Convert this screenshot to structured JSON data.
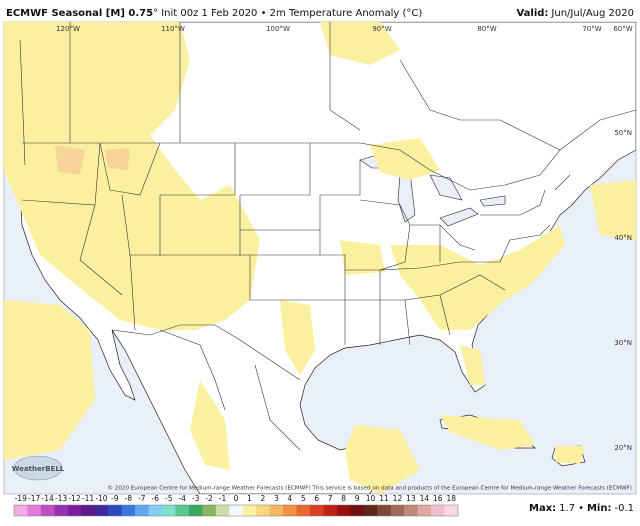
{
  "header": {
    "title": "ECMWF Seasonal [M] 0.75",
    "subtitle": "° Init 00z 1 Feb 2020 • 2m Temperature Anomaly (°C)",
    "valid_label": "Valid:",
    "valid_value": "Jun/Jul/Aug 2020"
  },
  "longitude_labels": [
    "120°W",
    "110°W",
    "100°W",
    "90°W",
    "80°W",
    "70°W",
    "60°W"
  ],
  "latitude_labels": [
    "50°N",
    "40°N",
    "30°N",
    "20°N"
  ],
  "logo": "WeatherBELL",
  "copyright": "© 2020 European Centre for Medium-range Weather Forecasts (ECMWF) This service is based on data and products of the European Centre for Medium-range Weather Forecasts (ECMWF)",
  "colorbar": {
    "labels": [
      -19,
      -17,
      -14,
      -13,
      -12,
      -11,
      -10,
      -9,
      -8,
      -7,
      -6,
      -5,
      -4,
      -3,
      -2,
      -1,
      0,
      1,
      2,
      3,
      4,
      5,
      6,
      7,
      8,
      9,
      10,
      11,
      12,
      13,
      14,
      16,
      18
    ],
    "colors": [
      "#f7a8e6",
      "#e27ad8",
      "#c04fc4",
      "#9a2fb0",
      "#7a1f9a",
      "#5a1a8a",
      "#3d2a9a",
      "#2a4ac0",
      "#3a78e0",
      "#5ea8f0",
      "#86cdf5",
      "#7fe0d0",
      "#5ac890",
      "#3aa860",
      "#8ab860",
      "#c8e0a8",
      "#f4f8fb",
      "#fbf0a0",
      "#f7d880",
      "#f4b860",
      "#f09040",
      "#e86830",
      "#d84020",
      "#c02018",
      "#9a1010",
      "#701010",
      "#602818",
      "#804838",
      "#a06858",
      "#c08878",
      "#e0a8a0",
      "#f0c0c8",
      "#f8d8e8"
    ]
  },
  "stats": {
    "max_label": "Max:",
    "max": 1.7,
    "separator": "•",
    "min_label": "Min:",
    "min": -0.1
  }
}
